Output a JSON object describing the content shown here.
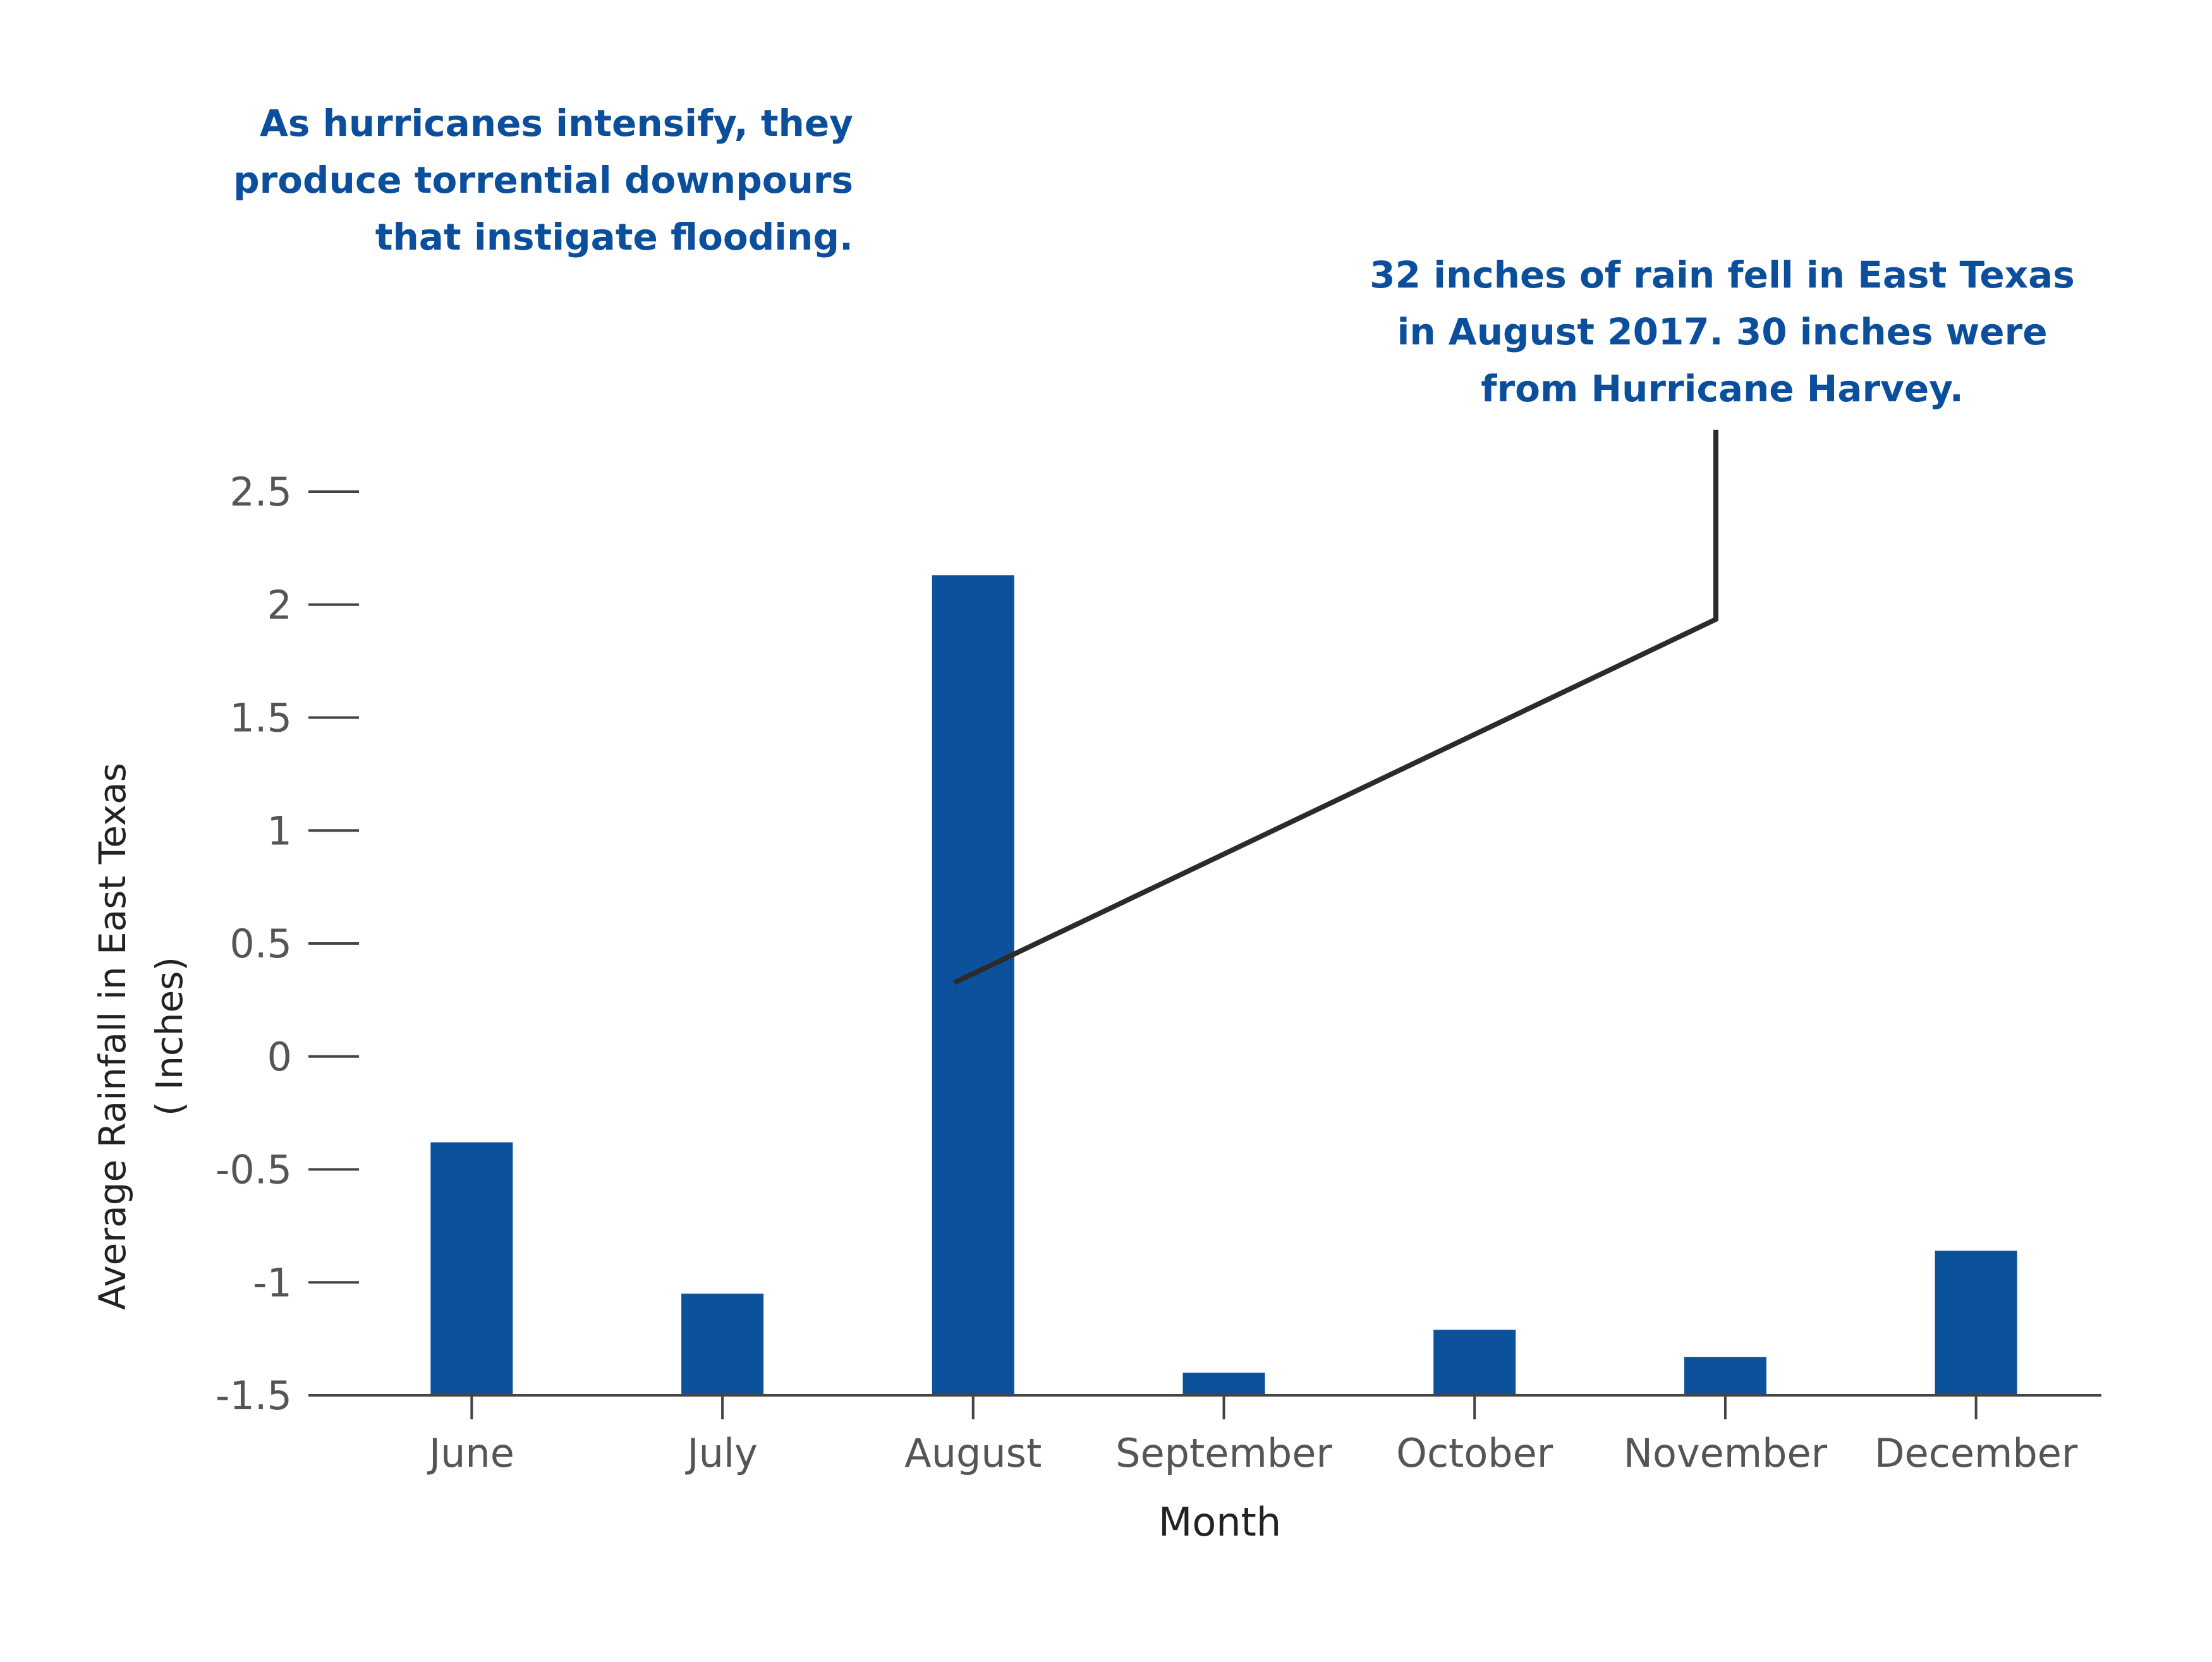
{
  "annotations": {
    "intensify": "As hurricanes intensify, they\nproduce torrential downpours\nthat instigate flooding.",
    "harvey": "32 inches of rain fell in East Texas\nin August 2017. 30 inches were\nfrom Hurricane Harvey."
  },
  "colors": {
    "bar": "#0b519c",
    "annotation_text": "#0b4f9c",
    "axis": "#444444",
    "tick_label": "#555555",
    "callout_line": "#2b2b2b"
  },
  "chart_data": {
    "type": "bar",
    "categories": [
      "June",
      "July",
      "August",
      "September",
      "October",
      "November",
      "December"
    ],
    "values": [
      -0.38,
      -1.05,
      2.13,
      -1.4,
      -1.21,
      -1.33,
      -0.86
    ],
    "xlabel": "Month",
    "ylabel": [
      "Average Rainfall in East Texas",
      "( Inches)"
    ],
    "ylim": [
      -1.5,
      2.5
    ],
    "yticks": [
      -1.5,
      -1,
      -0.5,
      0,
      0.5,
      1,
      1.5,
      2,
      2.5
    ],
    "ytick_labels": [
      "-1.5",
      "-1",
      "-0.5",
      "0",
      "0.5",
      "1",
      "1.5",
      "2",
      "2.5"
    ],
    "baseline": -1.5,
    "grid": false,
    "legend": "none"
  }
}
